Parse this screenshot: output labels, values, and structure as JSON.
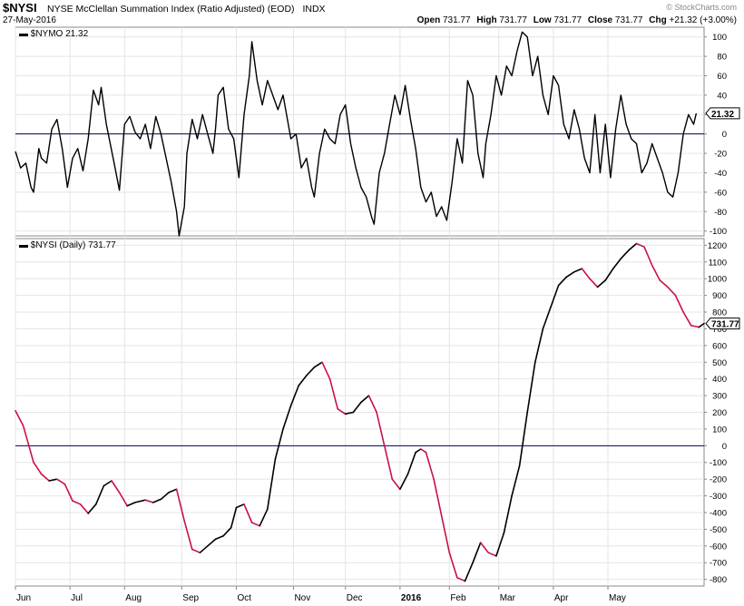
{
  "header": {
    "symbol": "$NYSI",
    "name": "NYSE McClellan Summation Index (Ratio Adjusted) (EOD)",
    "exchange": "INDX",
    "date": "27-May-2016",
    "watermark": "© StockCharts.com",
    "quote": {
      "open_label": "Open",
      "open": "731.77",
      "high_label": "High",
      "high": "731.77",
      "low_label": "Low",
      "low": "731.77",
      "close_label": "Close",
      "close": "731.77",
      "chg_label": "Chg",
      "chg": "+21.32 (+3.00%)"
    }
  },
  "colors": {
    "up": "#000000",
    "down": "#cc1144",
    "zero_line": "#000066",
    "grid": "#e4e4e4",
    "axis": "#888888"
  },
  "x_labels": [
    {
      "label": "Jun",
      "t": 0
    },
    {
      "label": "Jul",
      "t": 21
    },
    {
      "label": "Aug",
      "t": 42
    },
    {
      "label": "Sep",
      "t": 64
    },
    {
      "label": "Oct",
      "t": 85
    },
    {
      "label": "Nov",
      "t": 107
    },
    {
      "label": "Dec",
      "t": 127
    },
    {
      "label": "2016",
      "t": 148
    },
    {
      "label": "Feb",
      "t": 167
    },
    {
      "label": "Mar",
      "t": 186
    },
    {
      "label": "Apr",
      "t": 207
    },
    {
      "label": "May",
      "t": 228
    }
  ],
  "chart_data": [
    {
      "type": "line",
      "legend": "$NYMO 21.32",
      "last_value": "21.32",
      "ylim": [
        -105,
        110
      ],
      "yticks": [
        100,
        80,
        60,
        40,
        20,
        0,
        -20,
        -40,
        -60,
        -80,
        -100
      ],
      "zero_line": 0,
      "points": [
        [
          0,
          -18
        ],
        [
          2,
          -35
        ],
        [
          4,
          -30
        ],
        [
          6,
          -55
        ],
        [
          7,
          -60
        ],
        [
          9,
          -15
        ],
        [
          10,
          -25
        ],
        [
          12,
          -30
        ],
        [
          14,
          5
        ],
        [
          16,
          15
        ],
        [
          18,
          -15
        ],
        [
          20,
          -55
        ],
        [
          22,
          -25
        ],
        [
          24,
          -15
        ],
        [
          26,
          -38
        ],
        [
          28,
          -5
        ],
        [
          30,
          45
        ],
        [
          32,
          30
        ],
        [
          33,
          48
        ],
        [
          35,
          10
        ],
        [
          38,
          -30
        ],
        [
          40,
          -58
        ],
        [
          42,
          10
        ],
        [
          44,
          18
        ],
        [
          46,
          2
        ],
        [
          48,
          -5
        ],
        [
          50,
          10
        ],
        [
          52,
          -15
        ],
        [
          54,
          18
        ],
        [
          56,
          0
        ],
        [
          58,
          -25
        ],
        [
          60,
          -50
        ],
        [
          62,
          -80
        ],
        [
          63,
          -105
        ],
        [
          65,
          -75
        ],
        [
          66,
          -20
        ],
        [
          68,
          15
        ],
        [
          70,
          -5
        ],
        [
          72,
          20
        ],
        [
          74,
          0
        ],
        [
          76,
          -20
        ],
        [
          77,
          5
        ],
        [
          78,
          40
        ],
        [
          80,
          48
        ],
        [
          82,
          5
        ],
        [
          84,
          -5
        ],
        [
          86,
          -45
        ],
        [
          88,
          20
        ],
        [
          90,
          60
        ],
        [
          91,
          95
        ],
        [
          93,
          55
        ],
        [
          95,
          30
        ],
        [
          97,
          55
        ],
        [
          99,
          40
        ],
        [
          101,
          25
        ],
        [
          103,
          40
        ],
        [
          106,
          -5
        ],
        [
          108,
          0
        ],
        [
          110,
          -35
        ],
        [
          112,
          -25
        ],
        [
          114,
          -55
        ],
        [
          115,
          -65
        ],
        [
          117,
          -20
        ],
        [
          119,
          5
        ],
        [
          121,
          -5
        ],
        [
          123,
          -10
        ],
        [
          125,
          20
        ],
        [
          127,
          30
        ],
        [
          129,
          -10
        ],
        [
          131,
          -35
        ],
        [
          133,
          -55
        ],
        [
          135,
          -65
        ],
        [
          137,
          -85
        ],
        [
          138,
          -93
        ],
        [
          140,
          -40
        ],
        [
          142,
          -20
        ],
        [
          144,
          10
        ],
        [
          146,
          40
        ],
        [
          148,
          20
        ],
        [
          150,
          50
        ],
        [
          152,
          15
        ],
        [
          154,
          -15
        ],
        [
          156,
          -55
        ],
        [
          158,
          -70
        ],
        [
          160,
          -60
        ],
        [
          162,
          -85
        ],
        [
          164,
          -75
        ],
        [
          166,
          -89
        ],
        [
          168,
          -50
        ],
        [
          170,
          -5
        ],
        [
          172,
          -30
        ],
        [
          174,
          55
        ],
        [
          176,
          40
        ],
        [
          178,
          -20
        ],
        [
          180,
          -45
        ],
        [
          181,
          -10
        ],
        [
          183,
          20
        ],
        [
          185,
          60
        ],
        [
          187,
          40
        ],
        [
          189,
          70
        ],
        [
          191,
          60
        ],
        [
          193,
          85
        ],
        [
          195,
          105
        ],
        [
          197,
          100
        ],
        [
          199,
          60
        ],
        [
          201,
          80
        ],
        [
          203,
          40
        ],
        [
          205,
          20
        ],
        [
          207,
          60
        ],
        [
          209,
          50
        ],
        [
          211,
          10
        ],
        [
          213,
          -5
        ],
        [
          215,
          25
        ],
        [
          217,
          5
        ],
        [
          219,
          -25
        ],
        [
          221,
          -40
        ],
        [
          223,
          20
        ],
        [
          225,
          -40
        ],
        [
          227,
          10
        ],
        [
          229,
          -45
        ],
        [
          231,
          5
        ],
        [
          233,
          40
        ],
        [
          235,
          10
        ],
        [
          237,
          -5
        ],
        [
          239,
          -10
        ],
        [
          241,
          -40
        ],
        [
          243,
          -30
        ],
        [
          245,
          -10
        ],
        [
          247,
          -25
        ],
        [
          249,
          -40
        ],
        [
          251,
          -60
        ],
        [
          253,
          -65
        ],
        [
          255,
          -40
        ],
        [
          257,
          0
        ],
        [
          259,
          20
        ],
        [
          261,
          10
        ],
        [
          262,
          21.32
        ]
      ]
    },
    {
      "type": "line",
      "legend": "$NYSI (Daily) 731.77",
      "last_value": "731.77",
      "ylim": [
        -840,
        1240
      ],
      "yticks": [
        1200,
        1100,
        1000,
        900,
        800,
        700,
        600,
        500,
        400,
        300,
        200,
        100,
        0,
        -100,
        -200,
        -300,
        -400,
        -500,
        -600,
        -700,
        -800
      ],
      "zero_line": 0,
      "line_color_rule": "black when rising, red when falling",
      "points": [
        [
          0,
          210
        ],
        [
          3,
          120
        ],
        [
          7,
          -100
        ],
        [
          10,
          -170
        ],
        [
          13,
          -210
        ],
        [
          16,
          -200
        ],
        [
          19,
          -230
        ],
        [
          22,
          -330
        ],
        [
          25,
          -350
        ],
        [
          28,
          -405
        ],
        [
          31,
          -350
        ],
        [
          34,
          -240
        ],
        [
          37,
          -210
        ],
        [
          40,
          -280
        ],
        [
          43,
          -360
        ],
        [
          46,
          -340
        ],
        [
          50,
          -325
        ],
        [
          53,
          -340
        ],
        [
          56,
          -320
        ],
        [
          59,
          -280
        ],
        [
          62,
          -260
        ],
        [
          65,
          -450
        ],
        [
          68,
          -620
        ],
        [
          71,
          -640
        ],
        [
          74,
          -600
        ],
        [
          77,
          -560
        ],
        [
          80,
          -540
        ],
        [
          83,
          -490
        ],
        [
          85,
          -370
        ],
        [
          88,
          -350
        ],
        [
          91,
          -460
        ],
        [
          94,
          -480
        ],
        [
          97,
          -380
        ],
        [
          100,
          -80
        ],
        [
          103,
          100
        ],
        [
          106,
          240
        ],
        [
          109,
          360
        ],
        [
          112,
          420
        ],
        [
          115,
          470
        ],
        [
          118,
          500
        ],
        [
          121,
          400
        ],
        [
          124,
          220
        ],
        [
          127,
          190
        ],
        [
          130,
          200
        ],
        [
          133,
          260
        ],
        [
          136,
          300
        ],
        [
          139,
          200
        ],
        [
          142,
          0
        ],
        [
          145,
          -200
        ],
        [
          148,
          -260
        ],
        [
          151,
          -170
        ],
        [
          154,
          -40
        ],
        [
          156,
          -20
        ],
        [
          158,
          -40
        ],
        [
          161,
          -200
        ],
        [
          164,
          -420
        ],
        [
          167,
          -640
        ],
        [
          170,
          -790
        ],
        [
          173,
          -810
        ],
        [
          176,
          -700
        ],
        [
          179,
          -580
        ],
        [
          182,
          -640
        ],
        [
          185,
          -660
        ],
        [
          188,
          -520
        ],
        [
          191,
          -300
        ],
        [
          194,
          -120
        ],
        [
          197,
          200
        ],
        [
          200,
          500
        ],
        [
          203,
          700
        ],
        [
          206,
          830
        ],
        [
          209,
          960
        ],
        [
          212,
          1010
        ],
        [
          215,
          1040
        ],
        [
          218,
          1060
        ],
        [
          221,
          1000
        ],
        [
          224,
          950
        ],
        [
          227,
          990
        ],
        [
          230,
          1060
        ],
        [
          233,
          1120
        ],
        [
          236,
          1170
        ],
        [
          239,
          1210
        ],
        [
          242,
          1190
        ],
        [
          245,
          1080
        ],
        [
          248,
          990
        ],
        [
          251,
          950
        ],
        [
          254,
          900
        ],
        [
          257,
          800
        ],
        [
          260,
          720
        ],
        [
          263,
          710
        ],
        [
          265,
          731.77
        ]
      ]
    }
  ]
}
